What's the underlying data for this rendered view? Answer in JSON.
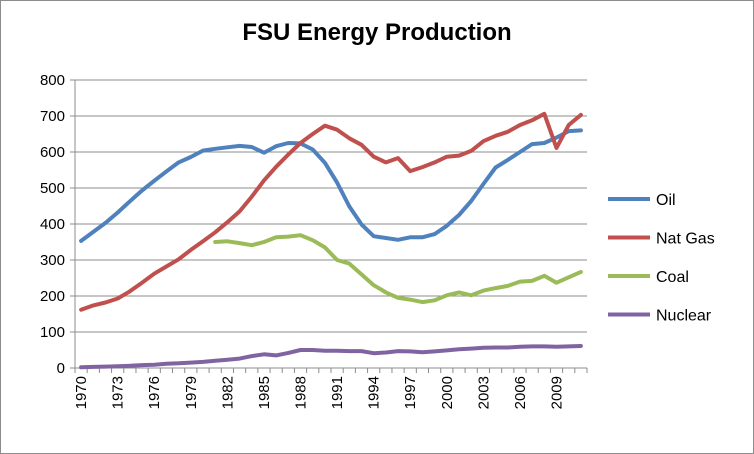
{
  "chart_data": {
    "type": "line",
    "title": "FSU Energy Production",
    "xlabel": "",
    "ylabel": "",
    "ylim": [
      0,
      800
    ],
    "y_ticks": [
      0,
      100,
      200,
      300,
      400,
      500,
      600,
      700,
      800
    ],
    "x_range": [
      1970,
      2011
    ],
    "x_tick_labels": [
      "1970",
      "1973",
      "1976",
      "1979",
      "1982",
      "1985",
      "1988",
      "1991",
      "1994",
      "1997",
      "2000",
      "2003",
      "2006",
      "2009"
    ],
    "grid": "horizontal",
    "legend_position": "right",
    "series": [
      {
        "name": "Oil",
        "color": "#4f81bd",
        "x": [
          1970,
          1971,
          1972,
          1973,
          1974,
          1975,
          1976,
          1977,
          1978,
          1979,
          1980,
          1981,
          1982,
          1983,
          1984,
          1985,
          1986,
          1987,
          1988,
          1989,
          1990,
          1991,
          1992,
          1993,
          1994,
          1995,
          1996,
          1997,
          1998,
          1999,
          2000,
          2001,
          2002,
          2003,
          2004,
          2005,
          2006,
          2007,
          2008,
          2009,
          2010,
          2011
        ],
        "values": [
          353,
          378,
          403,
          432,
          463,
          493,
          520,
          546,
          571,
          586,
          604,
          609,
          613,
          617,
          614,
          598,
          616,
          625,
          624,
          607,
          570,
          515,
          449,
          399,
          366,
          361,
          356,
          363,
          363,
          372,
          395,
          425,
          464,
          511,
          557,
          578,
          600,
          622,
          625,
          640,
          658,
          660
        ]
      },
      {
        "name": "Nat Gas",
        "color": "#c0504d",
        "x": [
          1970,
          1971,
          1972,
          1973,
          1974,
          1975,
          1976,
          1977,
          1978,
          1979,
          1980,
          1981,
          1982,
          1983,
          1984,
          1985,
          1986,
          1987,
          1988,
          1989,
          1990,
          1991,
          1992,
          1993,
          1994,
          1995,
          1996,
          1997,
          1998,
          1999,
          2000,
          2001,
          2002,
          2003,
          2004,
          2005,
          2006,
          2007,
          2008,
          2009,
          2010,
          2011
        ],
        "values": [
          162,
          174,
          182,
          193,
          213,
          237,
          262,
          282,
          302,
          328,
          352,
          377,
          405,
          435,
          476,
          521,
          559,
          593,
          625,
          650,
          673,
          662,
          638,
          620,
          587,
          571,
          583,
          547,
          558,
          571,
          587,
          590,
          603,
          630,
          645,
          656,
          675,
          688,
          706,
          611,
          675,
          703
        ]
      },
      {
        "name": "Coal",
        "color": "#9bbb59",
        "x": [
          1981,
          1982,
          1983,
          1984,
          1985,
          1986,
          1987,
          1988,
          1989,
          1990,
          1991,
          1992,
          1993,
          1994,
          1995,
          1996,
          1997,
          1998,
          1999,
          2000,
          2001,
          2002,
          2003,
          2004,
          2005,
          2006,
          2007,
          2008,
          2009,
          2010,
          2011
        ],
        "values": [
          350,
          352,
          347,
          341,
          350,
          363,
          365,
          369,
          355,
          335,
          300,
          290,
          260,
          230,
          210,
          195,
          190,
          183,
          188,
          202,
          210,
          202,
          215,
          222,
          228,
          240,
          242,
          256,
          237,
          252,
          267
        ]
      },
      {
        "name": "Nuclear",
        "color": "#8064a2",
        "x": [
          1970,
          1971,
          1972,
          1973,
          1974,
          1975,
          1976,
          1977,
          1978,
          1979,
          1980,
          1981,
          1982,
          1983,
          1984,
          1985,
          1986,
          1987,
          1988,
          1989,
          1990,
          1991,
          1992,
          1993,
          1994,
          1995,
          1996,
          1997,
          1998,
          1999,
          2000,
          2001,
          2002,
          2003,
          2004,
          2005,
          2006,
          2007,
          2008,
          2009,
          2010,
          2011
        ],
        "values": [
          2,
          3,
          4,
          5,
          6,
          8,
          9,
          12,
          13,
          15,
          17,
          20,
          23,
          26,
          33,
          38,
          35,
          42,
          50,
          50,
          48,
          48,
          47,
          47,
          41,
          43,
          47,
          46,
          44,
          46,
          49,
          52,
          54,
          56,
          57,
          57,
          59,
          60,
          60,
          59,
          60,
          61
        ]
      }
    ]
  }
}
